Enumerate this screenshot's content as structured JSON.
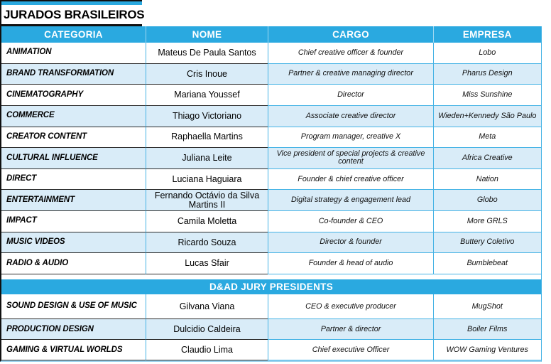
{
  "title": "JURADOS BRASILEIROS",
  "columns": [
    "CATEGORIA",
    "NOME",
    "CARGO",
    "EMPRESA"
  ],
  "colors": {
    "header_blue": "#2AA9E0",
    "row_alt_blue": "#D9ECF8",
    "grid_blue": "#45B3E5",
    "grid_dark": "#2B2B2B"
  },
  "sections": [
    {
      "name": "jurados-brasileiros",
      "rows": [
        {
          "categoria": "ANIMATION",
          "nome": "Mateus De Paula Santos",
          "cargo": "Chief creative officer & founder",
          "empresa": "Lobo"
        },
        {
          "categoria": "BRAND TRANSFORMATION",
          "nome": "Cris Inoue",
          "cargo": "Partner & creative managing director",
          "empresa": "Pharus Design"
        },
        {
          "categoria": "CINEMATOGRAPHY",
          "nome": "Mariana Youssef",
          "cargo": "Director",
          "empresa": "Miss Sunshine"
        },
        {
          "categoria": "COMMERCE",
          "nome": "Thiago Victoriano",
          "cargo": "Associate creative director",
          "empresa": "Wieden+Kennedy São Paulo"
        },
        {
          "categoria": "CREATOR CONTENT",
          "nome": "Raphaella Martins",
          "cargo": "Program manager, creative X",
          "empresa": "Meta"
        },
        {
          "categoria": "CULTURAL INFLUENCE",
          "nome": "Juliana Leite",
          "cargo": "Vice president of special projects & creative content",
          "empresa": "Africa Creative"
        },
        {
          "categoria": "DIRECT",
          "nome": "Luciana Haguiara",
          "cargo": "Founder & chief creative officer",
          "empresa": "Nation"
        },
        {
          "categoria": "ENTERTAINMENT",
          "nome": "Fernando Octávio da Silva Martins II",
          "cargo": "Digital strategy & engagement lead",
          "empresa": "Globo"
        },
        {
          "categoria": "IMPACT",
          "nome": "Camila Moletta",
          "cargo": "Co-founder & CEO",
          "empresa": "More GRLS"
        },
        {
          "categoria": "MUSIC VIDEOS",
          "nome": "Ricardo Souza",
          "cargo": "Director & founder",
          "empresa": "Buttery Coletivo"
        },
        {
          "categoria": "RADIO & AUDIO",
          "nome": "Lucas Sfair",
          "cargo": "Founder & head of audio",
          "empresa": "Bumblebeat"
        }
      ]
    },
    {
      "name": "dad-jury-presidents",
      "banner": "D&AD JURY PRESIDENTS",
      "rows": [
        {
          "categoria": "SOUND DESIGN & USE OF MUSIC",
          "nome": "Gilvana Viana",
          "cargo": "CEO & executive producer",
          "empresa": "MugShot"
        },
        {
          "categoria": "PRODUCTION DESIGN",
          "nome": "Dulcidio Caldeira",
          "cargo": "Partner & director",
          "empresa": "Boiler Films"
        },
        {
          "categoria": "GAMING & VIRTUAL WORLDS",
          "nome": "Claudio Lima",
          "cargo": "Chief executive Officer",
          "empresa": "WOW Gaming Ventures"
        }
      ]
    }
  ]
}
